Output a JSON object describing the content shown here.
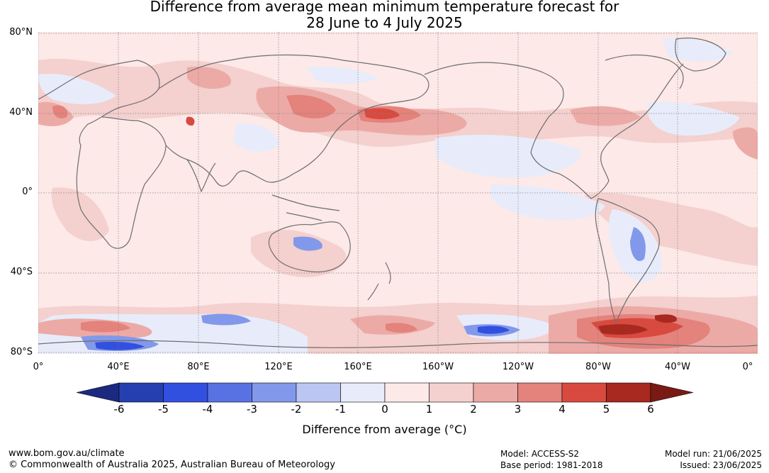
{
  "title_line1": "Difference from average mean minimum temperature forecast for",
  "title_line2": "28 June to 4 July 2025",
  "lat_labels": [
    "80°N",
    "40°N",
    "0°",
    "40°S",
    "80°S"
  ],
  "lon_labels": [
    "0°",
    "40°E",
    "80°E",
    "120°E",
    "160°E",
    "160°W",
    "120°W",
    "80°W",
    "40°W",
    "0°"
  ],
  "colorbar": {
    "ticks": [
      "-6",
      "-5",
      "-4",
      "-3",
      "-2",
      "-1",
      "0",
      "1",
      "2",
      "3",
      "4",
      "5",
      "6"
    ],
    "label": "Difference from average (°C)",
    "colors": [
      "#1b2a80",
      "#263fb0",
      "#3250e0",
      "#5872e4",
      "#8298ea",
      "#bcc6f2",
      "#e8ecfa",
      "#fce9e8",
      "#f4d0ce",
      "#ecaaa6",
      "#e4827c",
      "#d84a3f",
      "#a8291f",
      "#7a1a14"
    ]
  },
  "footer": {
    "website": "www.bom.gov.au/climate",
    "copyright": "© Commonwealth of Australia 2025, Australian Bureau of Meteorology",
    "model": "Model: ACCESS-S2",
    "base_period": "Base period: 1981-2018",
    "model_run": "Model run: 21/06/2025",
    "issued": "Issued: 23/06/2025"
  }
}
